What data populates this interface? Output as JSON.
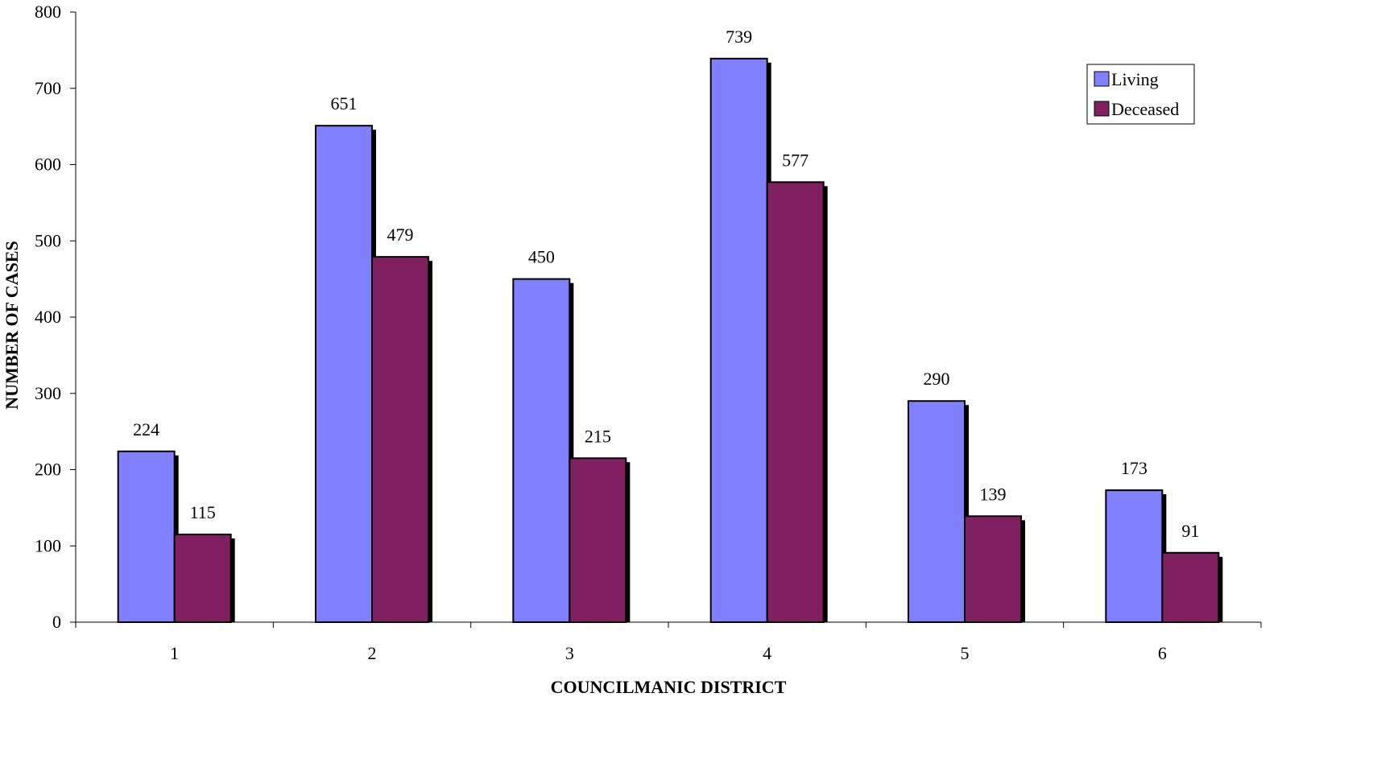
{
  "chart_data": {
    "type": "bar",
    "title": "",
    "xlabel": "COUNCILMANIC DISTRICT",
    "ylabel": "NUMBER OF CASES",
    "categories": [
      "1",
      "2",
      "3",
      "4",
      "5",
      "6"
    ],
    "series": [
      {
        "name": "Living",
        "values": [
          224,
          651,
          450,
          739,
          290,
          173
        ],
        "color": "#8080FF"
      },
      {
        "name": "Deceased",
        "values": [
          115,
          479,
          215,
          577,
          139,
          91
        ],
        "color": "#802060"
      }
    ],
    "ylim": [
      0,
      800
    ],
    "yticks": [
      0,
      100,
      200,
      300,
      400,
      500,
      600,
      700,
      800
    ],
    "yticks_labels": [
      "0",
      "100",
      "200",
      "300",
      "400",
      "500",
      "600",
      "700",
      "800"
    ],
    "grid": false,
    "legend_position": "top-right",
    "data_labels": true,
    "bar_shadow": true
  }
}
